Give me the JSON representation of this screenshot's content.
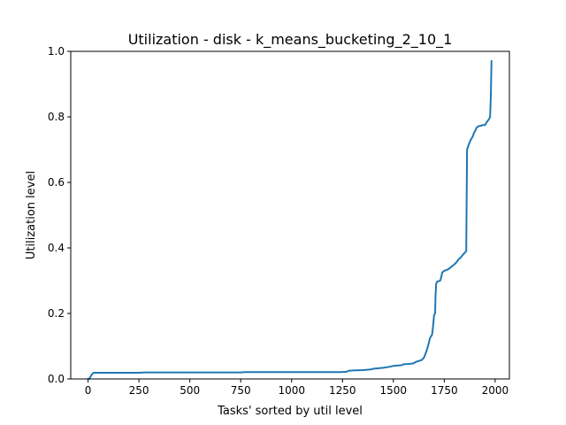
{
  "chart_data": {
    "type": "line",
    "title": "Utilization - disk - k_means_bucketing_2_10_1",
    "xlabel": "Tasks' sorted by util level",
    "ylabel": "Utilization level",
    "xlim": [
      -85,
      2070
    ],
    "ylim": [
      0,
      1.0
    ],
    "grid": false,
    "x_ticks": [
      0,
      250,
      500,
      750,
      1000,
      1250,
      1500,
      1750,
      2000
    ],
    "x_tick_labels": [
      "0",
      "250",
      "500",
      "750",
      "1000",
      "1250",
      "1500",
      "1750",
      "2000"
    ],
    "y_ticks": [
      0.0,
      0.2,
      0.4,
      0.6,
      0.8,
      1.0
    ],
    "y_tick_labels": [
      "0.0",
      "0.2",
      "0.4",
      "0.6",
      "0.8",
      "1.0"
    ],
    "line_color": "#1f77b4",
    "series": [
      {
        "x": [
          0,
          5,
          10,
          15,
          20,
          25,
          30,
          100,
          250,
          280,
          300,
          500,
          750,
          770,
          800,
          1000,
          1150,
          1240,
          1270,
          1280,
          1300,
          1350,
          1390,
          1400,
          1450,
          1480,
          1500,
          1540,
          1550,
          1580,
          1600,
          1610,
          1640,
          1650,
          1660,
          1670,
          1680,
          1690,
          1695,
          1700,
          1705,
          1707,
          1710,
          1715,
          1730,
          1735,
          1740,
          1750,
          1770,
          1780,
          1790,
          1800,
          1810,
          1820,
          1830,
          1840,
          1850,
          1858,
          1860,
          1862,
          1870,
          1880,
          1890,
          1895,
          1900,
          1910,
          1920,
          1930,
          1940,
          1950,
          1960,
          1970,
          1975,
          1978,
          1980,
          1981,
          1982
        ],
        "y": [
          0.0,
          0.0,
          0.005,
          0.01,
          0.015,
          0.018,
          0.019,
          0.019,
          0.019,
          0.02,
          0.02,
          0.02,
          0.02,
          0.021,
          0.021,
          0.021,
          0.021,
          0.021,
          0.022,
          0.025,
          0.026,
          0.027,
          0.029,
          0.031,
          0.034,
          0.037,
          0.04,
          0.042,
          0.045,
          0.046,
          0.048,
          0.052,
          0.058,
          0.065,
          0.08,
          0.1,
          0.125,
          0.135,
          0.16,
          0.195,
          0.2,
          0.25,
          0.29,
          0.297,
          0.3,
          0.31,
          0.325,
          0.33,
          0.335,
          0.34,
          0.345,
          0.35,
          0.356,
          0.365,
          0.37,
          0.378,
          0.385,
          0.39,
          0.55,
          0.7,
          0.715,
          0.73,
          0.74,
          0.75,
          0.755,
          0.768,
          0.772,
          0.773,
          0.775,
          0.775,
          0.785,
          0.793,
          0.8,
          0.85,
          0.9,
          0.94,
          0.97
        ]
      }
    ]
  }
}
